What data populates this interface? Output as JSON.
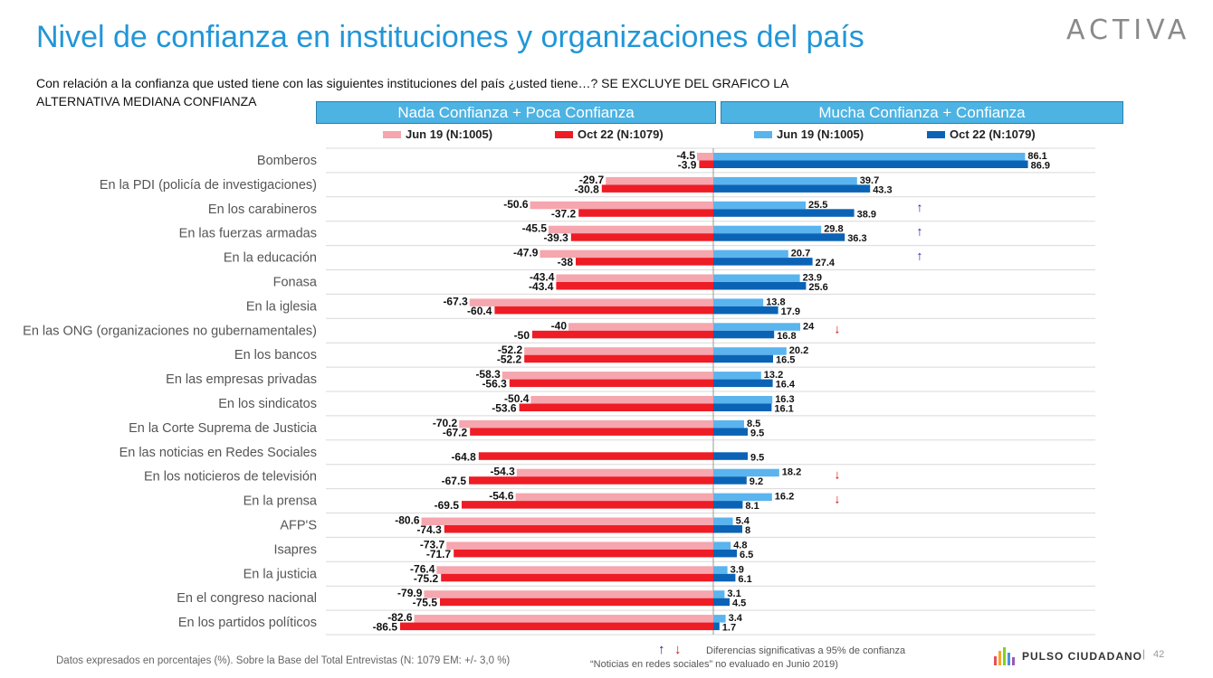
{
  "title": "Nivel de confianza en instituciones y organizaciones del país",
  "logo": "ACTIVA",
  "subtitle": "Con relación a la confianza que usted tiene con las siguientes instituciones del país ¿usted tiene…? SE EXCLUYE DEL GRAFICO LA ALTERNATIVA MEDIANA CONFIANZA",
  "headers": {
    "left": "Nada Confianza + Poca Confianza",
    "right": "Mucha Confianza + Confianza"
  },
  "legend": {
    "jun19": "Jun 19 (N:1005)",
    "oct22": "Oct 22 (N:1079)"
  },
  "colors": {
    "neg_jun19": "#f6a6ae",
    "neg_oct22": "#ee1c25",
    "pos_jun19": "#5ab4ee",
    "pos_oct22": "#0b63b5",
    "arrow_up": "#1a1aa0",
    "arrow_down": "#d01010"
  },
  "chart_data": {
    "type": "bar",
    "orientation": "horizontal-diverging",
    "categories": [
      "Bomberos",
      "En la PDI (policía de investigaciones)",
      "En los carabineros",
      "En las fuerzas armadas",
      "En la educación",
      "Fonasa",
      "En la iglesia",
      "En las ONG (organizaciones no gubernamentales)",
      "En los bancos",
      "En las empresas privadas",
      "En los sindicatos",
      "En la Corte Suprema de Justicia",
      "En las noticias en Redes Sociales",
      "En los noticieros de televisión",
      "En la prensa",
      "AFP'S",
      "Isapres",
      "En la justicia",
      "En el congreso nacional",
      "En los partidos políticos"
    ],
    "series": [
      {
        "name": "Jun 19 (N:1005)",
        "group": "Nada Confianza + Poca Confianza",
        "values": [
          -4.5,
          -29.7,
          -50.6,
          -45.5,
          -47.9,
          -43.4,
          -67.3,
          -40,
          -52.2,
          -58.3,
          -50.4,
          -70.2,
          null,
          -54.3,
          -54.6,
          -80.6,
          -73.7,
          -76.4,
          -79.9,
          -82.6
        ]
      },
      {
        "name": "Oct 22 (N:1079)",
        "group": "Nada Confianza + Poca Confianza",
        "values": [
          -3.9,
          -30.8,
          -37.2,
          -39.3,
          -38,
          -43.4,
          -60.4,
          -50,
          -52.2,
          -56.3,
          -53.6,
          -67.2,
          -64.8,
          -67.5,
          -69.5,
          -74.3,
          -71.7,
          -75.2,
          -75.5,
          -86.5
        ]
      },
      {
        "name": "Jun 19 (N:1005)",
        "group": "Mucha Confianza + Confianza",
        "values": [
          86.1,
          39.7,
          25.5,
          29.8,
          20.7,
          23.9,
          13.8,
          24,
          20.2,
          13.2,
          16.3,
          8.5,
          null,
          18.2,
          16.2,
          5.4,
          4.8,
          3.9,
          3.1,
          3.4
        ]
      },
      {
        "name": "Oct 22 (N:1079)",
        "group": "Mucha Confianza + Confianza",
        "values": [
          86.9,
          43.3,
          38.9,
          36.3,
          27.4,
          25.6,
          17.9,
          16.8,
          16.5,
          16.4,
          16.1,
          9.5,
          9.5,
          9.2,
          8.1,
          8,
          6.5,
          6.1,
          4.5,
          1.7
        ]
      }
    ],
    "significance": [
      "",
      "",
      "up",
      "up",
      "up",
      "",
      "",
      "down",
      "",
      "",
      "",
      "",
      "",
      "down",
      "down",
      "",
      "",
      "",
      "",
      ""
    ],
    "xlim": [
      -90,
      90
    ]
  },
  "footer": {
    "note": "Datos expresados en porcentajes (%). Sobre la Base del Total Entrevistas (N: 1079  EM: +/- 3,0 %)",
    "significance_legend": "Diferencias  significativas a 95% de confianza",
    "social_note": "“Noticias en redes sociales”  no evaluado en Junio 2019)",
    "arrow_up": "↑",
    "arrow_down": "↓",
    "brand": "PULSO CIUDADANO",
    "separator": "|",
    "page": "42"
  }
}
